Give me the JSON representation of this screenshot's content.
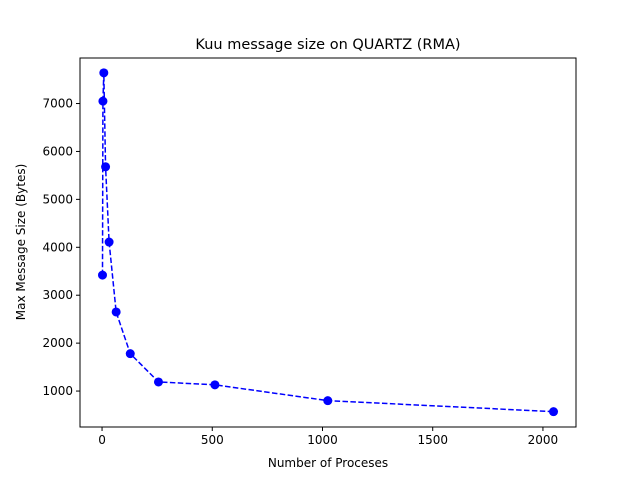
{
  "chart_data": {
    "type": "line",
    "title": "Kuu message size on QUARTZ (RMA)",
    "xlabel": "Number of Proceses",
    "ylabel": "Max Message Size (Bytes)",
    "xlim": [
      -100,
      2150
    ],
    "ylim": [
      250,
      7950
    ],
    "xticks": [
      0,
      500,
      1000,
      1500,
      2000
    ],
    "yticks": [
      1000,
      2000,
      3000,
      4000,
      5000,
      6000,
      7000
    ],
    "grid": false,
    "line_style": "dashed",
    "marker": "circle",
    "color": "#0000ff",
    "series": [
      {
        "x": [
          2,
          4,
          8,
          16,
          32,
          64,
          128,
          256,
          512,
          1024,
          2048
        ],
        "y": [
          3420,
          7050,
          7640,
          5680,
          4110,
          2650,
          1780,
          1190,
          1130,
          800,
          570
        ]
      }
    ]
  }
}
